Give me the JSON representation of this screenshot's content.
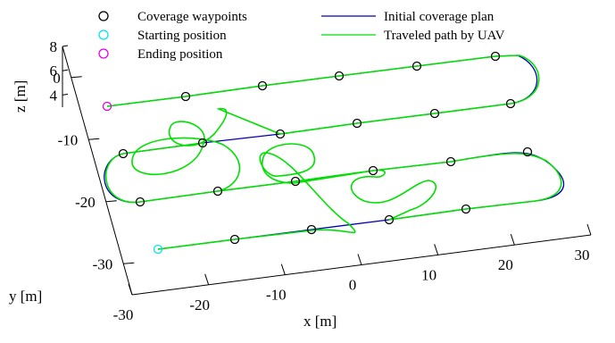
{
  "chart_data": {
    "type": "line",
    "title": "",
    "xlabel": "x [m]",
    "ylabel": "y [m]",
    "zlabel": "z [m]",
    "x_ticks": [
      -30,
      -20,
      -10,
      0,
      10,
      20,
      30
    ],
    "y_ticks": [
      -30,
      -20,
      -10,
      0
    ],
    "z_ticks": [
      4,
      6,
      8
    ],
    "xlim": [
      -30,
      30
    ],
    "ylim": [
      -35,
      5
    ],
    "zlim": [
      3,
      8
    ],
    "grid": false,
    "legend_position": "top",
    "colors": {
      "waypoint": "#000000",
      "start": "#00e5ee",
      "end": "#e100e1",
      "plan": "#0000b4",
      "traveled": "#00e000"
    },
    "legend": {
      "waypoints": "Coverage waypoints",
      "start": "Starting position",
      "end": "Ending position",
      "plan": "Initial coverage plan",
      "traveled": "Traveled path by UAV"
    },
    "start_position": {
      "x": -25,
      "y": -30,
      "z": 5
    },
    "end_position": {
      "x": -25,
      "y": 5,
      "z": 5
    },
    "waypoints": [
      {
        "x": -17,
        "y": -30,
        "z": 5
      },
      {
        "x": -2,
        "y": -30,
        "z": 5
      },
      {
        "x": 13,
        "y": -30,
        "z": 5
      },
      {
        "x": 28,
        "y": -30,
        "z": 5
      },
      {
        "x": -25,
        "y": -20,
        "z": 5
      },
      {
        "x": -15,
        "y": -20,
        "z": 5
      },
      {
        "x": -4,
        "y": -20,
        "z": 5
      },
      {
        "x": 6,
        "y": -20,
        "z": 5
      },
      {
        "x": 16,
        "y": -20,
        "z": 5
      },
      {
        "x": 26,
        "y": -20,
        "z": 5
      },
      {
        "x": -25,
        "y": -10,
        "z": 5
      },
      {
        "x": -15,
        "y": -10,
        "z": 5
      },
      {
        "x": -4,
        "y": -10,
        "z": 5
      },
      {
        "x": 6,
        "y": -10,
        "z": 5
      },
      {
        "x": 16,
        "y": -10,
        "z": 5
      },
      {
        "x": 26,
        "y": -10,
        "z": 5
      },
      {
        "x": -14,
        "y": 5,
        "z": 5
      },
      {
        "x": -4,
        "y": 5,
        "z": 5
      },
      {
        "x": 6,
        "y": 5,
        "z": 5
      },
      {
        "x": 16,
        "y": 5,
        "z": 5
      },
      {
        "x": 26,
        "y": 5,
        "z": 5
      }
    ],
    "plan_lanes": [
      {
        "y": -30,
        "x_from": -25,
        "x_to": 28
      },
      {
        "y": -20,
        "x_from": -25,
        "x_to": 28
      },
      {
        "y": -10,
        "x_from": -25,
        "x_to": 28
      },
      {
        "y": 5,
        "x_from": -25,
        "x_to": 28
      }
    ]
  }
}
